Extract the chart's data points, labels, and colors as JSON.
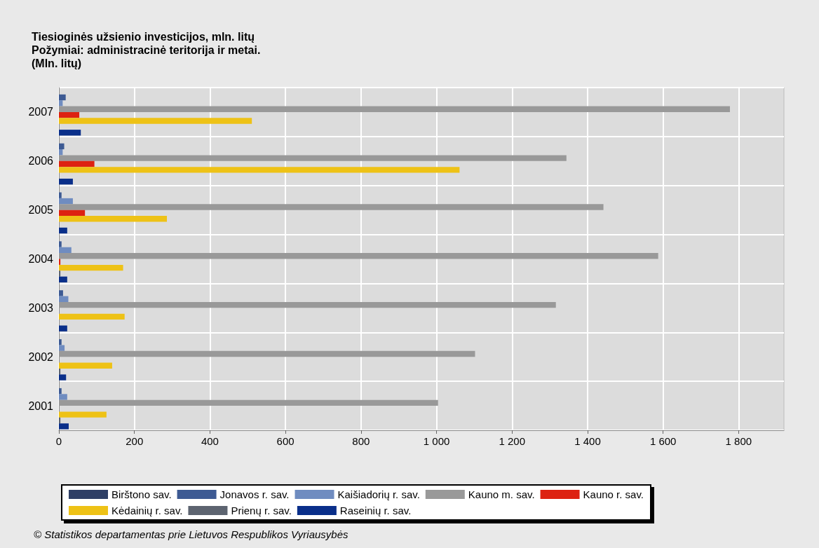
{
  "chart_data": {
    "type": "bar",
    "orientation": "horizontal",
    "title": "Tiesioginės užsienio investicijos, mln. litų\nPožymiai: administracinė teritorija ir metai.\n(Mln. litų)",
    "categories": [
      "2007",
      "2006",
      "2005",
      "2004",
      "2003",
      "2002",
      "2001"
    ],
    "series": [
      {
        "name": "Birštono sav.",
        "color": "#2e3f66",
        "values": [
          null,
          null,
          null,
          null,
          null,
          null,
          null
        ]
      },
      {
        "name": "Jonavos r. sav.",
        "color": "#3d5a93",
        "values": [
          18,
          14,
          7,
          7,
          11,
          7,
          7
        ]
      },
      {
        "name": "Kaišiadorių r. sav.",
        "color": "#6f8cc0",
        "values": [
          10,
          10,
          37,
          33,
          25,
          15,
          22
        ]
      },
      {
        "name": "Kauno m. sav.",
        "color": "#999999",
        "values": [
          1777,
          1344,
          1442,
          1587,
          1316,
          1102,
          1004
        ]
      },
      {
        "name": "Kauno r. sav.",
        "color": "#dd2211",
        "values": [
          54,
          94,
          69,
          4,
          null,
          null,
          null
        ]
      },
      {
        "name": "Kėdainių r. sav.",
        "color": "#eec216",
        "values": [
          511,
          1061,
          286,
          170,
          174,
          141,
          126
        ]
      },
      {
        "name": "Prienų r. sav.",
        "color": "#5d6470",
        "values": [
          null,
          null,
          null,
          4,
          null,
          4,
          4
        ]
      },
      {
        "name": "Raseinių r. sav.",
        "color": "#0a2f8a",
        "values": [
          58,
          37,
          22,
          22,
          22,
          19,
          26
        ]
      }
    ],
    "xlim": [
      0,
      1920
    ],
    "xticks": [
      0,
      200,
      400,
      600,
      800,
      {
        "value": 1000,
        "label": "1 000"
      },
      {
        "value": 1200,
        "label": "1 200"
      },
      {
        "value": 1400,
        "label": "1 400"
      },
      {
        "value": 1600,
        "label": "1 600"
      },
      {
        "value": 1800,
        "label": "1 800"
      }
    ],
    "grid": true,
    "legend": "bottom",
    "annotations": [
      "© Statistikos departamentas prie Lietuvos Respublikos Vyriausybės"
    ]
  }
}
